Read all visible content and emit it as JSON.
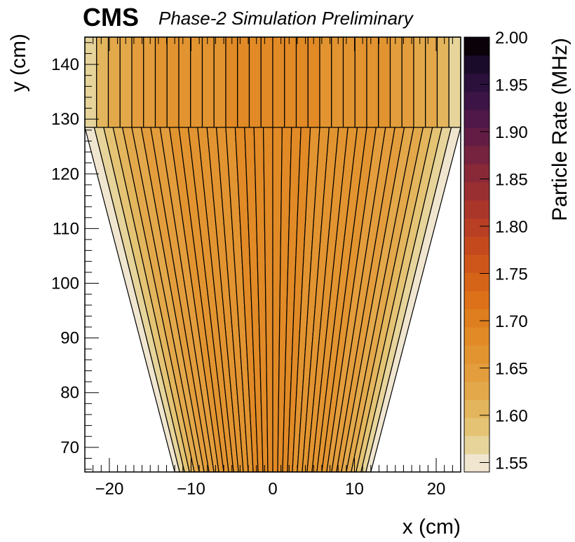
{
  "chart_data": {
    "type": "heatmap",
    "experiment": "CMS",
    "title": "Phase-2 Simulation Preliminary",
    "xlabel": "x (cm)",
    "ylabel": "y (cm)",
    "zlabel": "Particle Rate (MHz)",
    "xlim": [
      -23,
      23
    ],
    "ylim": [
      65.5,
      145
    ],
    "zlim": [
      1.54,
      2.0
    ],
    "x_ticks": [
      -20,
      -10,
      0,
      10,
      20
    ],
    "x_tick_labels": [
      "−20",
      "−10",
      "0",
      "10",
      "20"
    ],
    "y_ticks": [
      70,
      80,
      90,
      100,
      110,
      120,
      130,
      140
    ],
    "y_tick_labels": [
      "70",
      "80",
      "90",
      "100",
      "110",
      "120",
      "130",
      "140"
    ],
    "z_ticks": [
      1.55,
      1.6,
      1.65,
      1.7,
      1.75,
      1.8,
      1.85,
      1.9,
      1.95,
      2.0
    ],
    "z_tick_labels": [
      "1.55",
      "1.60",
      "1.65",
      "1.70",
      "1.75",
      "1.80",
      "1.85",
      "1.90",
      "1.95",
      "2.00"
    ],
    "palette": [
      "#f0e6d0",
      "#e6d49a",
      "#e4c474",
      "#e3b55c",
      "#e3a84a",
      "#e39d3c",
      "#e29430",
      "#e18a26",
      "#df7e1e",
      "#dc711a",
      "#d66418",
      "#cf561a",
      "#c44a1e",
      "#b83f24",
      "#aa362a",
      "#9a2f31",
      "#892938",
      "#76233f",
      "#631d45",
      "#4f1848",
      "#3c1446",
      "#2a103b",
      "#1b0b2b",
      "#0a0208"
    ],
    "lower_module": {
      "y_range": [
        65.5,
        128.5
      ],
      "x_at_bottom": [
        -12,
        12
      ],
      "x_at_top": [
        -23,
        23
      ],
      "strip_rates": [
        1.555,
        1.575,
        1.595,
        1.61,
        1.62,
        1.63,
        1.64,
        1.645,
        1.65,
        1.655,
        1.66,
        1.665,
        1.668,
        1.67,
        1.672,
        1.674,
        1.675,
        1.676,
        1.677,
        1.678,
        1.678,
        1.677,
        1.676,
        1.675,
        1.674,
        1.672,
        1.67,
        1.668,
        1.665,
        1.66,
        1.655,
        1.65,
        1.645,
        1.64,
        1.63,
        1.62,
        1.61,
        1.595,
        1.575,
        1.555
      ]
    },
    "upper_module": {
      "y_range": [
        128.5,
        145
      ],
      "x_at_bottom": [
        -23,
        23
      ],
      "x_at_top": [
        -23,
        23
      ],
      "strip_rates": [
        1.57,
        1.6,
        1.62,
        1.635,
        1.645,
        1.652,
        1.658,
        1.662,
        1.666,
        1.669,
        1.671,
        1.673,
        1.675,
        1.676,
        1.677,
        1.678,
        1.678,
        1.677,
        1.676,
        1.675,
        1.673,
        1.671,
        1.669,
        1.666,
        1.662,
        1.658,
        1.652,
        1.645,
        1.635,
        1.62,
        1.6,
        1.57
      ]
    }
  }
}
